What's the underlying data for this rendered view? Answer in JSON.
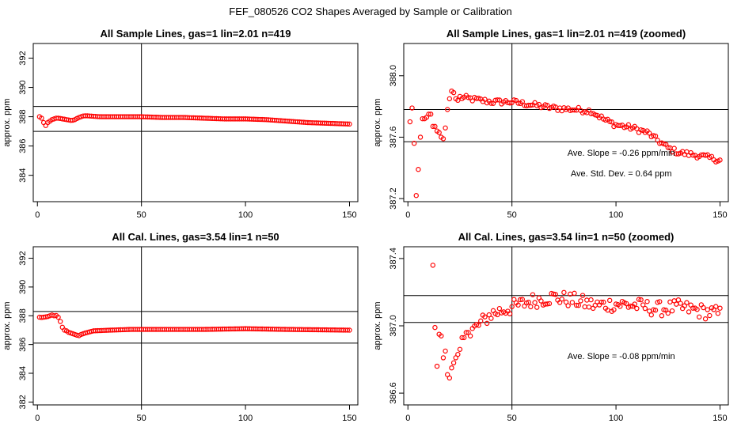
{
  "main_title": "FEF_080526  CO2 Shapes Averaged by Sample or Calibration",
  "colors": {
    "points": "#ff0000",
    "axes": "#000000",
    "background": "#ffffff"
  },
  "chart_data": [
    {
      "type": "scatter",
      "title": "All Sample Lines, gas=1 lin=2.01 n=419",
      "ylabel": "approx. ppm",
      "xlim": [
        -2,
        154
      ],
      "ylim": [
        382.2,
        393
      ],
      "xticks": [
        0,
        50,
        100,
        150
      ],
      "yticks": [
        384,
        386,
        388,
        390,
        392
      ],
      "vline": 50,
      "hlines": [
        388.7,
        387.0
      ],
      "annotations": [],
      "curve": [
        [
          1,
          388.0
        ],
        [
          2,
          387.9
        ],
        [
          3,
          387.6
        ],
        [
          4,
          387.4
        ],
        [
          5,
          387.6
        ],
        [
          6,
          387.7
        ],
        [
          8,
          387.85
        ],
        [
          10,
          387.9
        ],
        [
          12,
          387.85
        ],
        [
          14,
          387.8
        ],
        [
          16,
          387.75
        ],
        [
          18,
          387.8
        ],
        [
          20,
          387.95
        ],
        [
          22,
          388.05
        ],
        [
          25,
          388.05
        ],
        [
          30,
          388.0
        ],
        [
          40,
          388.0
        ],
        [
          50,
          388.0
        ],
        [
          60,
          387.95
        ],
        [
          70,
          387.95
        ],
        [
          80,
          387.9
        ],
        [
          90,
          387.85
        ],
        [
          100,
          387.85
        ],
        [
          110,
          387.8
        ],
        [
          120,
          387.7
        ],
        [
          130,
          387.6
        ],
        [
          140,
          387.55
        ],
        [
          150,
          387.5
        ]
      ],
      "points": [
        [
          1,
          388.0
        ],
        [
          2,
          387.9
        ],
        [
          3,
          387.6
        ],
        [
          4,
          387.4
        ],
        [
          5,
          387.6
        ],
        [
          6,
          387.7
        ],
        [
          7,
          387.8
        ],
        [
          8,
          387.85
        ],
        [
          9,
          387.9
        ],
        [
          10,
          387.9
        ],
        [
          11,
          387.88
        ],
        [
          12,
          387.85
        ],
        [
          13,
          387.83
        ],
        [
          14,
          387.8
        ],
        [
          15,
          387.78
        ],
        [
          16,
          387.75
        ],
        [
          17,
          387.76
        ],
        [
          18,
          387.8
        ],
        [
          19,
          387.88
        ],
        [
          20,
          387.95
        ],
        [
          21,
          388.0
        ],
        [
          22,
          388.05
        ],
        [
          23,
          388.06
        ],
        [
          24,
          388.06
        ]
      ]
    },
    {
      "type": "scatter",
      "title": "All Sample Lines, gas=1 lin=2.01 n=419 (zoomed)",
      "ylabel": "approx. ppm",
      "xlim": [
        -2,
        154
      ],
      "ylim": [
        387.18,
        388.21
      ],
      "xticks": [
        0,
        50,
        100,
        150
      ],
      "yticks": [
        387.2,
        387.6,
        388.0
      ],
      "vline": 50,
      "hlines": [
        387.78,
        387.57
      ],
      "annotations": [
        "Ave. Slope =  -0.26  ppm/min",
        "Ave. Std. Dev. =  0.64  ppm"
      ],
      "points": [
        [
          1,
          387.7
        ],
        [
          2,
          387.79
        ],
        [
          3,
          387.56
        ],
        [
          4,
          387.22
        ],
        [
          5,
          387.39
        ],
        [
          6,
          387.6
        ],
        [
          7,
          387.72
        ],
        [
          8,
          387.72
        ],
        [
          9,
          387.73
        ],
        [
          10,
          387.75
        ],
        [
          11,
          387.75
        ],
        [
          12,
          387.67
        ],
        [
          13,
          387.67
        ],
        [
          14,
          387.64
        ],
        [
          15,
          387.63
        ],
        [
          16,
          387.6
        ],
        [
          17,
          387.59
        ],
        [
          18,
          387.66
        ],
        [
          19,
          387.78
        ],
        [
          20,
          387.85
        ],
        [
          21,
          387.9
        ],
        [
          22,
          387.89
        ],
        [
          23,
          387.85
        ],
        [
          24,
          387.84
        ]
      ]
    },
    {
      "type": "scatter",
      "title": "All Cal. Lines, gas=3.54 lin=1 n=50",
      "ylabel": "approx. ppm",
      "xlim": [
        -2,
        154
      ],
      "ylim": [
        381.8,
        392.8
      ],
      "xticks": [
        0,
        50,
        100,
        150
      ],
      "yticks": [
        382,
        384,
        386,
        388,
        390,
        392
      ],
      "vline": 50,
      "hlines": [
        388.3,
        386.1
      ],
      "annotations": [],
      "curve": [
        [
          1,
          387.9
        ],
        [
          5,
          387.9
        ],
        [
          8,
          388.0
        ],
        [
          10,
          387.9
        ],
        [
          12,
          387.3
        ],
        [
          14,
          387.0
        ],
        [
          16,
          386.8
        ],
        [
          18,
          386.7
        ],
        [
          20,
          386.65
        ],
        [
          23,
          386.8
        ],
        [
          27,
          386.95
        ],
        [
          35,
          387.0
        ],
        [
          45,
          387.05
        ],
        [
          60,
          387.05
        ],
        [
          80,
          387.05
        ],
        [
          100,
          387.1
        ],
        [
          120,
          387.05
        ],
        [
          150,
          387.0
        ]
      ],
      "points": [
        [
          1,
          387.9
        ],
        [
          2,
          387.88
        ],
        [
          3,
          387.9
        ],
        [
          4,
          387.92
        ],
        [
          5,
          387.95
        ],
        [
          6,
          388.0
        ],
        [
          7,
          388.05
        ],
        [
          8,
          388.0
        ],
        [
          9,
          388.02
        ],
        [
          10,
          387.9
        ],
        [
          11,
          387.6
        ],
        [
          12,
          387.2
        ],
        [
          13,
          387.0
        ],
        [
          14,
          386.95
        ],
        [
          15,
          386.85
        ],
        [
          16,
          386.8
        ],
        [
          17,
          386.75
        ],
        [
          18,
          386.7
        ],
        [
          19,
          386.65
        ],
        [
          20,
          386.62
        ],
        [
          21,
          386.7
        ],
        [
          22,
          386.75
        ]
      ]
    },
    {
      "type": "scatter",
      "title": "All Cal. Lines, gas=3.54 lin=1 n=50 (zoomed)",
      "ylabel": "approx. ppm",
      "xlim": [
        -2,
        154
      ],
      "ylim": [
        386.53,
        387.47
      ],
      "xticks": [
        0,
        50,
        100,
        150
      ],
      "yticks": [
        386.6,
        387.0,
        387.4
      ],
      "vline": 50,
      "hlines": [
        387.18,
        387.02
      ],
      "annotations": [
        "Ave. Slope =  -0.08  ppm/min"
      ],
      "points": [
        [
          12,
          387.36
        ],
        [
          13,
          386.99
        ],
        [
          14,
          386.76
        ],
        [
          15,
          386.95
        ],
        [
          16,
          386.94
        ],
        [
          17,
          386.81
        ],
        [
          18,
          386.85
        ],
        [
          19,
          386.71
        ],
        [
          20,
          386.69
        ],
        [
          21,
          386.75
        ],
        [
          22,
          386.78
        ],
        [
          23,
          386.81
        ],
        [
          24,
          386.83
        ],
        [
          25,
          386.86
        ],
        [
          26,
          386.93
        ],
        [
          27,
          386.93
        ],
        [
          28,
          386.96
        ],
        [
          29,
          386.96
        ],
        [
          30,
          386.94
        ]
      ]
    }
  ]
}
